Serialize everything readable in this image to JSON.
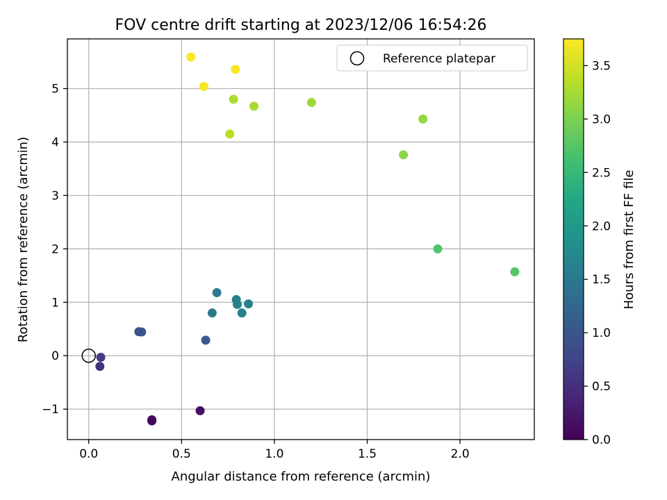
{
  "chart_data": {
    "type": "scatter",
    "title": "FOV centre drift starting at 2023/12/06 16:54:26",
    "xlabel": "Angular distance from reference (arcmin)",
    "ylabel": "Rotation from reference (arcmin)",
    "xlim": [
      -0.115,
      2.4
    ],
    "ylim": [
      -1.57,
      5.93
    ],
    "xticks": [
      0.0,
      0.5,
      1.0,
      1.5,
      2.0
    ],
    "xtick_labels": [
      "0.0",
      "0.5",
      "1.0",
      "1.5",
      "2.0"
    ],
    "yticks": [
      -1,
      0,
      1,
      2,
      3,
      4,
      5
    ],
    "ytick_labels": [
      "−1",
      "0",
      "1",
      "2",
      "3",
      "4",
      "5"
    ],
    "grid": true,
    "legend": {
      "position": "top-right",
      "entries": [
        {
          "label": "Reference platepar",
          "marker": "open-circle"
        }
      ]
    },
    "reference_point": {
      "x": 0.0,
      "y": 0.0
    },
    "colorbar": {
      "label": "Hours from first FF file",
      "colormap": "viridis",
      "range": [
        0.0,
        3.75
      ],
      "ticks": [
        0.0,
        0.5,
        1.0,
        1.5,
        2.0,
        2.5,
        3.0,
        3.5
      ],
      "tick_labels": [
        "0.0",
        "0.5",
        "1.0",
        "1.5",
        "2.0",
        "2.5",
        "3.0",
        "3.5"
      ]
    },
    "points": [
      {
        "x": 0.34,
        "y": -1.2,
        "hours": 0.05
      },
      {
        "x": 0.34,
        "y": -1.22,
        "hours": 0.08
      },
      {
        "x": 0.6,
        "y": -1.03,
        "hours": 0.15
      },
      {
        "x": 0.06,
        "y": -0.2,
        "hours": 0.55
      },
      {
        "x": 0.065,
        "y": -0.03,
        "hours": 0.65
      },
      {
        "x": 0.27,
        "y": 0.45,
        "hours": 0.95
      },
      {
        "x": 0.285,
        "y": 0.445,
        "hours": 1.0
      },
      {
        "x": 0.63,
        "y": 0.29,
        "hours": 1.05
      },
      {
        "x": 0.665,
        "y": 0.8,
        "hours": 1.5
      },
      {
        "x": 0.69,
        "y": 1.18,
        "hours": 1.55
      },
      {
        "x": 0.795,
        "y": 1.05,
        "hours": 1.6
      },
      {
        "x": 0.8,
        "y": 0.96,
        "hours": 1.62
      },
      {
        "x": 0.825,
        "y": 0.8,
        "hours": 1.65
      },
      {
        "x": 0.86,
        "y": 0.97,
        "hours": 1.6
      },
      {
        "x": 1.88,
        "y": 2.0,
        "hours": 2.7
      },
      {
        "x": 2.295,
        "y": 1.57,
        "hours": 2.75
      },
      {
        "x": 1.695,
        "y": 3.76,
        "hours": 3.1
      },
      {
        "x": 1.8,
        "y": 4.43,
        "hours": 3.15
      },
      {
        "x": 1.2,
        "y": 4.74,
        "hours": 3.2
      },
      {
        "x": 0.89,
        "y": 4.67,
        "hours": 3.25
      },
      {
        "x": 0.78,
        "y": 4.8,
        "hours": 3.3
      },
      {
        "x": 0.76,
        "y": 4.15,
        "hours": 3.35
      },
      {
        "x": 0.62,
        "y": 5.04,
        "hours": 3.7
      },
      {
        "x": 0.79,
        "y": 5.36,
        "hours": 3.72
      },
      {
        "x": 0.55,
        "y": 5.59,
        "hours": 3.75
      }
    ]
  }
}
